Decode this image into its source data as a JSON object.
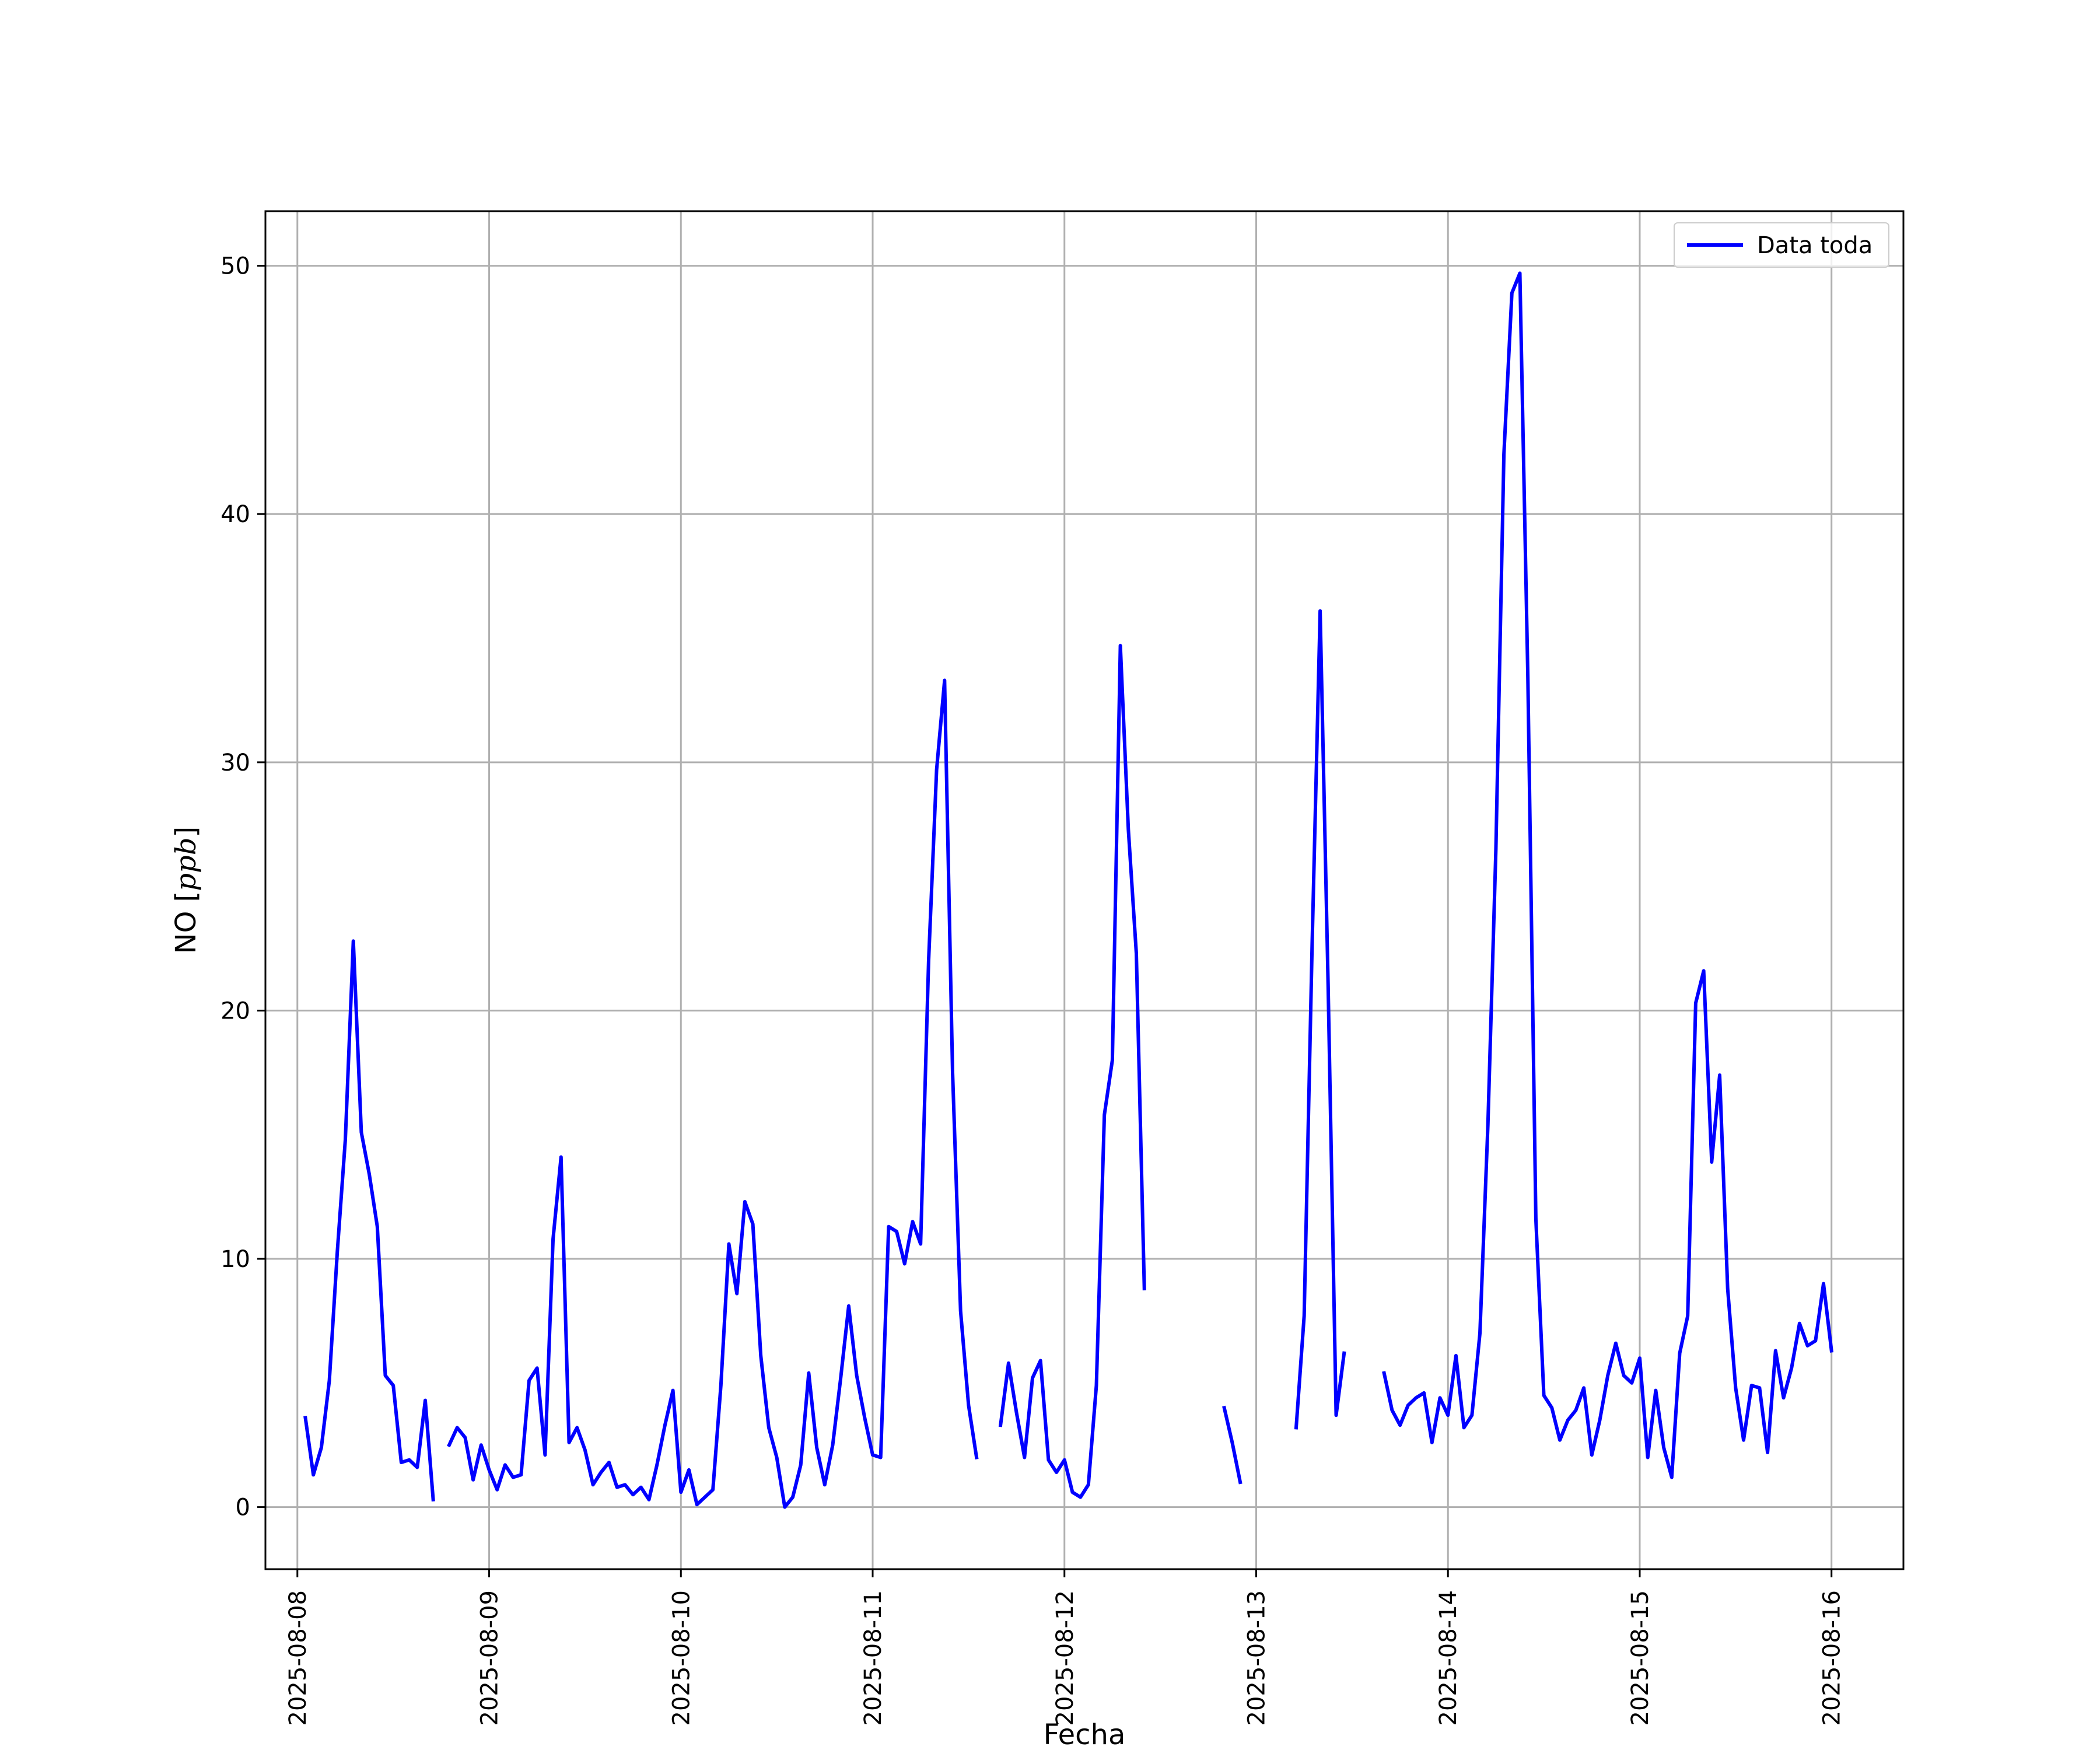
{
  "colors": {
    "series": "#0000ff",
    "grid": "#b0b0b0",
    "axes": "#000000"
  },
  "chart_data": {
    "type": "line",
    "title": "",
    "xlabel": "Fecha",
    "ylabel_main": "NO [",
    "ylabel_unit": "ppb",
    "ylabel_end": "]",
    "xlim": [
      "2025-08-07 20:00",
      "2025-08-16 09:00"
    ],
    "ylim": [
      -2.5,
      52.2
    ],
    "x_ticks": [
      "2025-08-08",
      "2025-08-09",
      "2025-08-10",
      "2025-08-11",
      "2025-08-12",
      "2025-08-13",
      "2025-08-14",
      "2025-08-15",
      "2025-08-16"
    ],
    "y_ticks": [
      0,
      10,
      20,
      30,
      40,
      50
    ],
    "grid": true,
    "legend_position": "top-right",
    "series": [
      {
        "name": "Data toda",
        "x": [
          "2025-08-08 01:00",
          "2025-08-08 02:00",
          "2025-08-08 03:00",
          "2025-08-08 04:00",
          "2025-08-08 05:00",
          "2025-08-08 06:00",
          "2025-08-08 07:00",
          "2025-08-08 08:00",
          "2025-08-08 09:00",
          "2025-08-08 10:00",
          "2025-08-08 11:00",
          "2025-08-08 12:00",
          "2025-08-08 13:00",
          "2025-08-08 14:00",
          "2025-08-08 15:00",
          "2025-08-08 16:00",
          "2025-08-08 17:00",
          "2025-08-08 19:00",
          "2025-08-08 20:00",
          "2025-08-08 21:00",
          "2025-08-08 22:00",
          "2025-08-08 23:00",
          "2025-08-09 00:00",
          "2025-08-09 01:00",
          "2025-08-09 02:00",
          "2025-08-09 03:00",
          "2025-08-09 04:00",
          "2025-08-09 05:00",
          "2025-08-09 06:00",
          "2025-08-09 07:00",
          "2025-08-09 08:00",
          "2025-08-09 09:00",
          "2025-08-09 10:00",
          "2025-08-09 11:00",
          "2025-08-09 12:00",
          "2025-08-09 13:00",
          "2025-08-09 14:00",
          "2025-08-09 15:00",
          "2025-08-09 16:00",
          "2025-08-09 17:00",
          "2025-08-09 18:00",
          "2025-08-09 19:00",
          "2025-08-09 20:00",
          "2025-08-09 21:00",
          "2025-08-09 22:00",
          "2025-08-09 23:00",
          "2025-08-10 00:00",
          "2025-08-10 01:00",
          "2025-08-10 02:00",
          "2025-08-10 03:00",
          "2025-08-10 04:00",
          "2025-08-10 05:00",
          "2025-08-10 06:00",
          "2025-08-10 07:00",
          "2025-08-10 08:00",
          "2025-08-10 09:00",
          "2025-08-10 10:00",
          "2025-08-10 11:00",
          "2025-08-10 12:00",
          "2025-08-10 13:00",
          "2025-08-10 14:00",
          "2025-08-10 15:00",
          "2025-08-10 16:00",
          "2025-08-10 17:00",
          "2025-08-10 18:00",
          "2025-08-10 19:00",
          "2025-08-10 20:00",
          "2025-08-10 21:00",
          "2025-08-10 22:00",
          "2025-08-10 23:00",
          "2025-08-11 00:00",
          "2025-08-11 01:00",
          "2025-08-11 02:00",
          "2025-08-11 03:00",
          "2025-08-11 04:00",
          "2025-08-11 05:00",
          "2025-08-11 06:00",
          "2025-08-11 07:00",
          "2025-08-11 08:00",
          "2025-08-11 09:00",
          "2025-08-11 10:00",
          "2025-08-11 11:00",
          "2025-08-11 12:00",
          "2025-08-11 13:00",
          "2025-08-11 16:00",
          "2025-08-11 17:00",
          "2025-08-11 18:00",
          "2025-08-11 19:00",
          "2025-08-11 20:00",
          "2025-08-11 21:00",
          "2025-08-11 22:00",
          "2025-08-11 23:00",
          "2025-08-12 00:00",
          "2025-08-12 01:00",
          "2025-08-12 02:00",
          "2025-08-12 03:00",
          "2025-08-12 04:00",
          "2025-08-12 05:00",
          "2025-08-12 06:00",
          "2025-08-12 07:00",
          "2025-08-12 08:00",
          "2025-08-12 09:00",
          "2025-08-12 10:00",
          "2025-08-12 20:00",
          "2025-08-12 21:00",
          "2025-08-12 22:00",
          "2025-08-13 05:00",
          "2025-08-13 06:00",
          "2025-08-13 07:00",
          "2025-08-13 08:00",
          "2025-08-13 09:00",
          "2025-08-13 10:00",
          "2025-08-13 11:00",
          "2025-08-13 16:00",
          "2025-08-13 17:00",
          "2025-08-13 18:00",
          "2025-08-13 19:00",
          "2025-08-13 20:00",
          "2025-08-13 21:00",
          "2025-08-13 22:00",
          "2025-08-13 23:00",
          "2025-08-14 00:00",
          "2025-08-14 01:00",
          "2025-08-14 02:00",
          "2025-08-14 03:00",
          "2025-08-14 04:00",
          "2025-08-14 05:00",
          "2025-08-14 06:00",
          "2025-08-14 07:00",
          "2025-08-14 08:00",
          "2025-08-14 09:00",
          "2025-08-14 10:00",
          "2025-08-14 11:00",
          "2025-08-14 12:00",
          "2025-08-14 13:00",
          "2025-08-14 14:00",
          "2025-08-14 15:00",
          "2025-08-14 16:00",
          "2025-08-14 17:00",
          "2025-08-14 18:00",
          "2025-08-14 19:00",
          "2025-08-14 20:00",
          "2025-08-14 21:00",
          "2025-08-14 22:00",
          "2025-08-14 23:00",
          "2025-08-15 00:00",
          "2025-08-15 01:00",
          "2025-08-15 02:00",
          "2025-08-15 03:00",
          "2025-08-15 04:00",
          "2025-08-15 05:00",
          "2025-08-15 06:00",
          "2025-08-15 07:00",
          "2025-08-15 08:00",
          "2025-08-15 09:00",
          "2025-08-15 10:00",
          "2025-08-15 11:00",
          "2025-08-15 12:00",
          "2025-08-15 13:00",
          "2025-08-15 14:00",
          "2025-08-15 15:00",
          "2025-08-15 16:00",
          "2025-08-15 17:00",
          "2025-08-15 18:00",
          "2025-08-15 19:00",
          "2025-08-15 20:00",
          "2025-08-15 21:00",
          "2025-08-15 22:00",
          "2025-08-15 23:00",
          "2025-08-16 00:00"
        ],
        "y": [
          3.6,
          1.3,
          2.4,
          5.1,
          10.3,
          14.8,
          22.8,
          15.1,
          13.4,
          11.3,
          5.3,
          4.9,
          1.8,
          1.9,
          1.6,
          4.3,
          0.3,
          2.5,
          3.2,
          2.8,
          1.1,
          2.5,
          1.5,
          0.7,
          1.7,
          1.2,
          1.3,
          5.1,
          5.6,
          2.1,
          10.8,
          14.1,
          2.6,
          3.2,
          2.3,
          0.9,
          1.4,
          1.8,
          0.8,
          0.9,
          0.5,
          0.8,
          0.3,
          1.7,
          3.3,
          4.7,
          0.6,
          1.5,
          0.1,
          0.4,
          0.7,
          4.9,
          10.6,
          8.6,
          12.3,
          11.4,
          6.1,
          3.2,
          2.0,
          0.0,
          0.4,
          1.7,
          5.4,
          2.4,
          0.9,
          2.5,
          5.2,
          8.1,
          5.3,
          3.6,
          2.1,
          2.0,
          11.3,
          11.1,
          9.8,
          11.5,
          10.6,
          22.0,
          29.7,
          33.3,
          17.5,
          7.9,
          4.1,
          2.0,
          3.3,
          5.8,
          3.8,
          2.0,
          5.2,
          5.9,
          1.9,
          1.4,
          1.9,
          0.6,
          0.4,
          0.9,
          4.9,
          15.8,
          18.0,
          34.7,
          27.3,
          22.3,
          8.8,
          4.0,
          2.6,
          1.0,
          3.2,
          7.7,
          22.7,
          36.1,
          21.0,
          3.7,
          6.2,
          5.4,
          3.9,
          3.3,
          4.1,
          4.4,
          4.6,
          2.6,
          4.4,
          3.7,
          6.1,
          3.2,
          3.7,
          7.0,
          15.4,
          26.5,
          42.4,
          48.9,
          49.7,
          33.4,
          11.6,
          4.5,
          4.0,
          2.7,
          3.5,
          3.9,
          4.8,
          2.1,
          3.5,
          5.3,
          6.6,
          5.3,
          5.0,
          6.0,
          2.0,
          4.7,
          2.4,
          1.2,
          6.2,
          7.7,
          20.3,
          21.6,
          13.9,
          17.4,
          8.8,
          4.8,
          2.7,
          4.9,
          4.8,
          2.2,
          6.3,
          4.4,
          5.6,
          7.4,
          6.5,
          6.7,
          9.0,
          6.3
        ]
      }
    ]
  }
}
